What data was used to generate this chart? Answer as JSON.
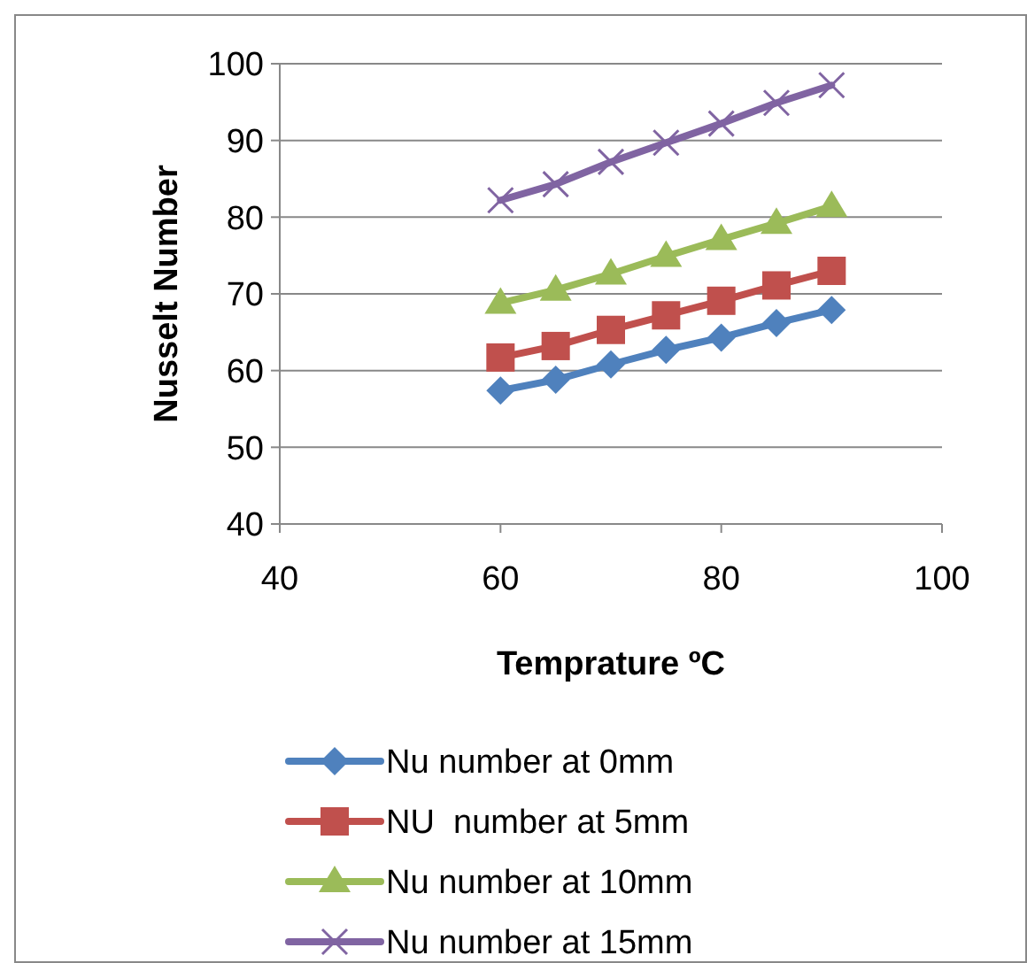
{
  "chart_data": {
    "type": "line",
    "xlabel": "Temprature ºC",
    "ylabel": "Nusselt Number",
    "x": [
      60,
      65,
      70,
      75,
      80,
      85,
      90
    ],
    "xlim": [
      40,
      100
    ],
    "xticks": [
      40,
      60,
      80,
      100
    ],
    "ylim": [
      40,
      100
    ],
    "yticks": [
      40,
      50,
      60,
      70,
      80,
      90,
      100
    ],
    "grid": "y",
    "legend": "bottom",
    "series": [
      {
        "name": "Nu number at 0mm",
        "color": "#4f81bd",
        "marker": "diamond",
        "values": [
          57.4,
          58.8,
          60.8,
          62.7,
          64.3,
          66.2,
          67.9
        ]
      },
      {
        "name": "NU  number at 5mm",
        "color": "#c0504d",
        "marker": "square",
        "values": [
          61.7,
          63.2,
          65.3,
          67.2,
          69.1,
          71.1,
          73.0
        ]
      },
      {
        "name": "Nu number at 10mm",
        "color": "#9bbb59",
        "marker": "triangle",
        "values": [
          68.8,
          70.5,
          72.6,
          74.9,
          77.1,
          79.2,
          81.4
        ]
      },
      {
        "name": "Nu number at 15mm",
        "color": "#8064a2",
        "marker": "cross",
        "values": [
          82.2,
          84.3,
          87.2,
          89.7,
          92.2,
          94.9,
          97.2
        ]
      }
    ]
  }
}
